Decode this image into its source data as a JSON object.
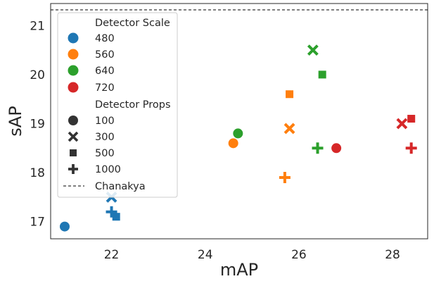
{
  "chart_data": {
    "type": "scatter",
    "xlabel": "mAP",
    "ylabel": "sAP",
    "xlim": [
      20.7,
      28.75
    ],
    "ylim": [
      16.65,
      21.45
    ],
    "xticks": [
      22,
      24,
      26,
      28
    ],
    "yticks": [
      17,
      18,
      19,
      20,
      21
    ],
    "grid": false,
    "legend_position": "upper-left",
    "reference_line": {
      "name": "Chanakya",
      "y": 21.32,
      "style": "dashed",
      "color": "#000000"
    },
    "legend": {
      "hue_title": "Detector Scale",
      "hue": [
        {
          "label": "480",
          "color": "#1f77b4"
        },
        {
          "label": "560",
          "color": "#ff7f0e"
        },
        {
          "label": "640",
          "color": "#2ca02c"
        },
        {
          "label": "720",
          "color": "#d62728"
        }
      ],
      "style_title": "Detector Props",
      "style": [
        {
          "label": "100",
          "marker": "circle"
        },
        {
          "label": "300",
          "marker": "x"
        },
        {
          "label": "500",
          "marker": "square"
        },
        {
          "label": "1000",
          "marker": "plus"
        }
      ]
    },
    "points": [
      {
        "scale": "480",
        "props": "100",
        "x": 21.0,
        "y": 16.9
      },
      {
        "scale": "480",
        "props": "300",
        "x": 22.0,
        "y": 17.5
      },
      {
        "scale": "480",
        "props": "500",
        "x": 22.1,
        "y": 17.1
      },
      {
        "scale": "480",
        "props": "1000",
        "x": 22.0,
        "y": 17.2
      },
      {
        "scale": "560",
        "props": "100",
        "x": 24.6,
        "y": 18.6
      },
      {
        "scale": "560",
        "props": "300",
        "x": 25.8,
        "y": 18.9
      },
      {
        "scale": "560",
        "props": "500",
        "x": 25.8,
        "y": 19.6
      },
      {
        "scale": "560",
        "props": "1000",
        "x": 25.7,
        "y": 17.9
      },
      {
        "scale": "640",
        "props": "100",
        "x": 24.7,
        "y": 18.8
      },
      {
        "scale": "640",
        "props": "300",
        "x": 26.3,
        "y": 20.5
      },
      {
        "scale": "640",
        "props": "500",
        "x": 26.5,
        "y": 20.0
      },
      {
        "scale": "640",
        "props": "1000",
        "x": 26.4,
        "y": 18.5
      },
      {
        "scale": "720",
        "props": "100",
        "x": 26.8,
        "y": 18.5
      },
      {
        "scale": "720",
        "props": "300",
        "x": 28.2,
        "y": 19.0
      },
      {
        "scale": "720",
        "props": "500",
        "x": 28.4,
        "y": 19.1
      },
      {
        "scale": "720",
        "props": "1000",
        "x": 28.4,
        "y": 18.5
      }
    ]
  }
}
